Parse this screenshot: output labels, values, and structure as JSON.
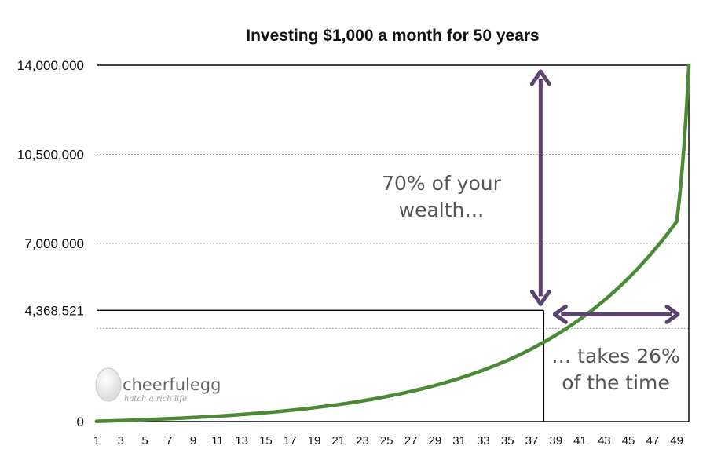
{
  "chart_data": {
    "type": "line",
    "title": "Investing $1,000 a month for 50 years",
    "xlabel": "",
    "ylabel": "",
    "xlim": [
      1,
      50
    ],
    "ylim": [
      0,
      14000000
    ],
    "y_ticks": [
      0,
      4368521,
      7000000,
      10500000,
      14000000
    ],
    "y_tick_labels": [
      "0",
      "4,368,521",
      "7,000,000",
      "10,500,000",
      "14,000,000"
    ],
    "x_ticks": [
      1,
      3,
      5,
      7,
      9,
      11,
      13,
      15,
      17,
      19,
      21,
      23,
      25,
      27,
      29,
      31,
      33,
      35,
      37,
      39,
      41,
      43,
      45,
      47,
      49
    ],
    "grid": "horizontal dotted",
    "series": [
      {
        "color": "#4a8a36",
        "x": [
          1,
          2,
          3,
          4,
          5,
          6,
          7,
          8,
          9,
          10,
          11,
          12,
          13,
          14,
          15,
          16,
          17,
          18,
          19,
          20,
          21,
          22,
          23,
          24,
          25,
          26,
          27,
          28,
          29,
          30,
          31,
          32,
          33,
          34,
          35,
          36,
          37,
          38,
          39,
          40,
          41,
          42,
          43,
          44,
          45,
          46,
          47,
          48,
          49,
          50
        ],
        "values": [
          12500,
          26063,
          40778,
          56744,
          74067,
          92863,
          113256,
          135382,
          159388,
          185434,
          213694,
          244357,
          277625,
          313721,
          352885,
          395377,
          441481,
          491502,
          545776,
          604664,
          668555,
          737877,
          813091,
          894696,
          983236,
          1079301,
          1183529,
          1296615,
          1419312,
          1552436,
          1696872,
          1853586,
          2023620,
          2208102,
          2408261,
          2625423,
          2861039,
          3116679,
          3394046,
          3694991,
          4021515,
          4375784,
          4760149,
          5177201,
          5629680,
          6120615,
          6653282,
          7231224,
          7858283,
          14000000
        ]
      }
    ],
    "reference_lines": {
      "x": 38,
      "y": 4368521,
      "x_end": 50,
      "y_top": 14000000
    },
    "annotations": [
      {
        "lines": [
          "70% of your",
          "wealth…"
        ]
      },
      {
        "lines": [
          "… takes 26%",
          "of the time"
        ]
      }
    ],
    "colors": {
      "line": "#4a8a36",
      "arrow": "#5b4470",
      "reference": "#000000",
      "grid": "#9a9a9a"
    }
  },
  "logo": {
    "name": "cheerfulegg",
    "tagline": "hatch a rich life"
  }
}
